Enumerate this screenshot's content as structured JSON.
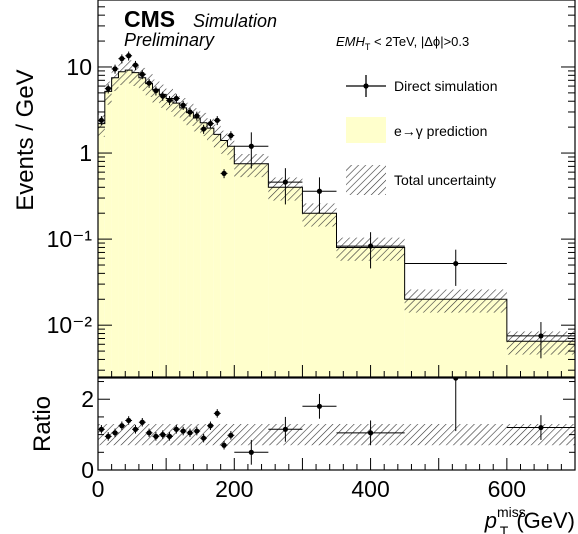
{
  "chart_data": [
    {
      "panel": "main",
      "type": "bar",
      "ylabel": "Events / GeV",
      "log_y": true,
      "xlim": [
        0,
        700
      ],
      "ylim": [
        0.0025,
        60
      ],
      "bin_edges": [
        0,
        10,
        20,
        30,
        40,
        50,
        60,
        70,
        80,
        90,
        100,
        110,
        120,
        130,
        140,
        150,
        160,
        170,
        180,
        190,
        200,
        250,
        300,
        350,
        450,
        600,
        700
      ],
      "series": [
        {
          "name": "e→γ prediction",
          "kind": "histogram",
          "color": "#ffffcc",
          "values": [
            2.2,
            5.2,
            7.5,
            8.8,
            9.2,
            8.6,
            7.5,
            6.4,
            5.5,
            4.8,
            4.3,
            3.8,
            3.35,
            2.95,
            2.55,
            2.25,
            1.95,
            1.65,
            1.4,
            1.2,
            0.75,
            0.4,
            0.2,
            0.08,
            0.02,
            0.0065
          ]
        },
        {
          "name": "Total uncertainty",
          "kind": "band",
          "hatched": true,
          "relative_uncertainty": 0.3
        },
        {
          "name": "Direct simulation",
          "kind": "points",
          "color": "#000000",
          "x": [
            5,
            15,
            25,
            35,
            45,
            55,
            65,
            75,
            85,
            95,
            105,
            115,
            125,
            135,
            145,
            155,
            165,
            175,
            185,
            195,
            225,
            275,
            325,
            400,
            525,
            650
          ],
          "y": [
            2.4,
            5.6,
            9.5,
            12.5,
            13.5,
            10.5,
            8.2,
            6.5,
            5.3,
            4.6,
            4.1,
            4.3,
            3.6,
            3.0,
            2.7,
            1.9,
            2.2,
            2.4,
            0.58,
            1.6,
            1.2,
            0.46,
            0.36,
            0.083,
            0.052,
            0.0075
          ]
        }
      ],
      "y_tick_labels": [
        "10⁻²",
        "10⁻¹",
        "1",
        "10"
      ]
    },
    {
      "panel": "ratio",
      "type": "scatter",
      "ylabel": "Ratio",
      "xlabel": "p",
      "xlabel_sup": "miss",
      "xlabel_sub": "T",
      "xlabel_unit": "(GeV)",
      "xlim": [
        0,
        700
      ],
      "ylim": [
        0,
        2.6
      ],
      "x_ticks": [
        0,
        200,
        400,
        600
      ],
      "y_ticks": [
        0,
        2
      ],
      "band_halfwidth": 0.3,
      "x": [
        5,
        15,
        25,
        35,
        45,
        55,
        65,
        75,
        85,
        95,
        105,
        115,
        125,
        135,
        145,
        155,
        165,
        175,
        185,
        195,
        225,
        275,
        325,
        400,
        525,
        650
      ],
      "y": [
        1.15,
        0.95,
        1.05,
        1.25,
        1.4,
        1.15,
        1.35,
        1.05,
        0.95,
        1.0,
        0.95,
        1.15,
        1.1,
        1.05,
        1.1,
        0.9,
        1.25,
        1.6,
        0.7,
        0.98,
        0.5,
        1.15,
        1.8,
        1.05,
        2.6,
        1.2
      ]
    }
  ],
  "labels": {
    "cms": "CMS",
    "simulation": "Simulation",
    "preliminary": "Preliminary",
    "selection": "EMH",
    "selection_sub": "T",
    "selection_rest": " < 2TeV, |Δϕ|>0.3"
  },
  "legend": [
    {
      "label": "Direct simulation",
      "symbol": "marker"
    },
    {
      "label": "e→γ prediction",
      "symbol": "fill"
    },
    {
      "label": "Total uncertainty",
      "symbol": "hatch"
    }
  ],
  "colors": {
    "fill": "#ffffcc",
    "line": "#000000"
  }
}
